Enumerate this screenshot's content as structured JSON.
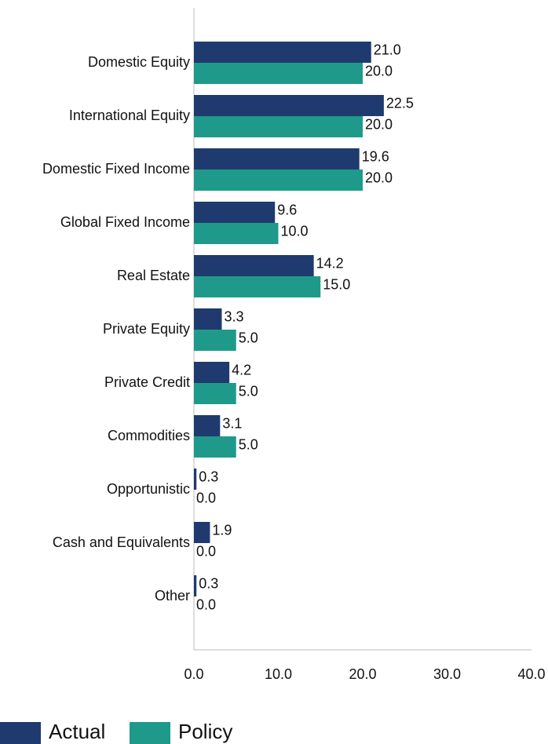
{
  "chart_data": {
    "type": "barh",
    "categories": [
      "Domestic Equity",
      "International Equity",
      "Domestic Fixed Income",
      "Global Fixed Income",
      "Real Estate",
      "Private Equity",
      "Private Credit",
      "Commodities",
      "Opportunistic",
      "Cash and Equivalents",
      "Other"
    ],
    "series": [
      {
        "name": "Actual",
        "color": "#1f3a6e",
        "values": [
          21.0,
          22.5,
          19.6,
          9.6,
          14.2,
          3.3,
          4.2,
          3.1,
          0.3,
          1.9,
          0.3
        ],
        "value_labels": [
          "21.0",
          "22.5",
          "19.6",
          "9.6",
          "14.2",
          "3.3",
          "4.2",
          "3.1",
          "0.3",
          "1.9",
          "0.3"
        ]
      },
      {
        "name": "Policy",
        "color": "#1f9a8a",
        "values": [
          20.0,
          20.0,
          20.0,
          10.0,
          15.0,
          5.0,
          5.0,
          5.0,
          0.0,
          0.0,
          0.0
        ],
        "value_labels": [
          "20.0",
          "20.0",
          "20.0",
          "10.0",
          "15.0",
          "5.0",
          "5.0",
          "5.0",
          "0.0",
          "0.0",
          "0.0"
        ]
      }
    ],
    "xlim": [
      0,
      40
    ],
    "xticks": [
      {
        "value": 0,
        "label": "0.0"
      },
      {
        "value": 10,
        "label": "10.0"
      },
      {
        "value": 20,
        "label": "20.0"
      },
      {
        "value": 30,
        "label": "30.0"
      },
      {
        "value": 40,
        "label": "40.0"
      }
    ],
    "grid": false,
    "legend": "bottom-left"
  }
}
